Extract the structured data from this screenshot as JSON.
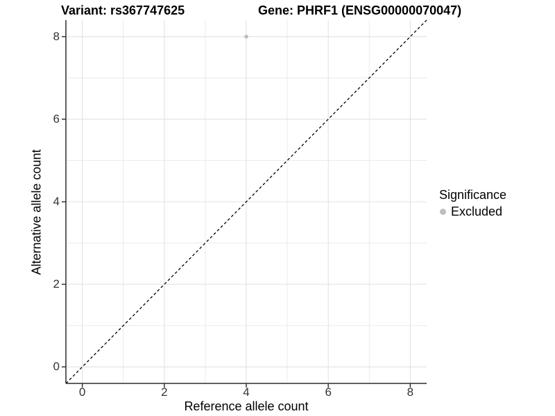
{
  "titles": {
    "variant": "Variant: rs367747625",
    "gene": "Gene: PHRF1 (ENSG00000070047)"
  },
  "chart_data": {
    "type": "scatter",
    "xlabel": "Reference allele count",
    "ylabel": "Alternative allele count",
    "xlim": [
      -0.4,
      8.4
    ],
    "ylim": [
      -0.4,
      8.4
    ],
    "x_ticks": [
      0,
      2,
      4,
      6,
      8
    ],
    "y_ticks": [
      0,
      2,
      4,
      6,
      8
    ],
    "x_minor_gridlines": [
      1,
      3,
      5,
      7
    ],
    "y_minor_gridlines": [
      1,
      3,
      5,
      7
    ],
    "grid": "major and minor gridlines, light grey on white",
    "points": [
      {
        "x": 4,
        "y": 8,
        "series": "Excluded"
      }
    ],
    "identity_line": {
      "style": "dashed",
      "from": [
        -0.4,
        -0.4
      ],
      "to": [
        8.4,
        8.4
      ]
    },
    "legend": {
      "title": "Significance",
      "position": "right",
      "entries": [
        {
          "label": "Excluded",
          "marker": "circle",
          "color": "#bebebe"
        }
      ]
    }
  },
  "colors": {
    "background": "#ffffff",
    "grid_major": "#e2e2e2",
    "grid_minor": "#ebebeb",
    "axis_line": "#2b2b2b",
    "tick_mark": "#333333",
    "tick_label": "#333333",
    "point": "#bebebe",
    "identity_line": "#000000"
  }
}
